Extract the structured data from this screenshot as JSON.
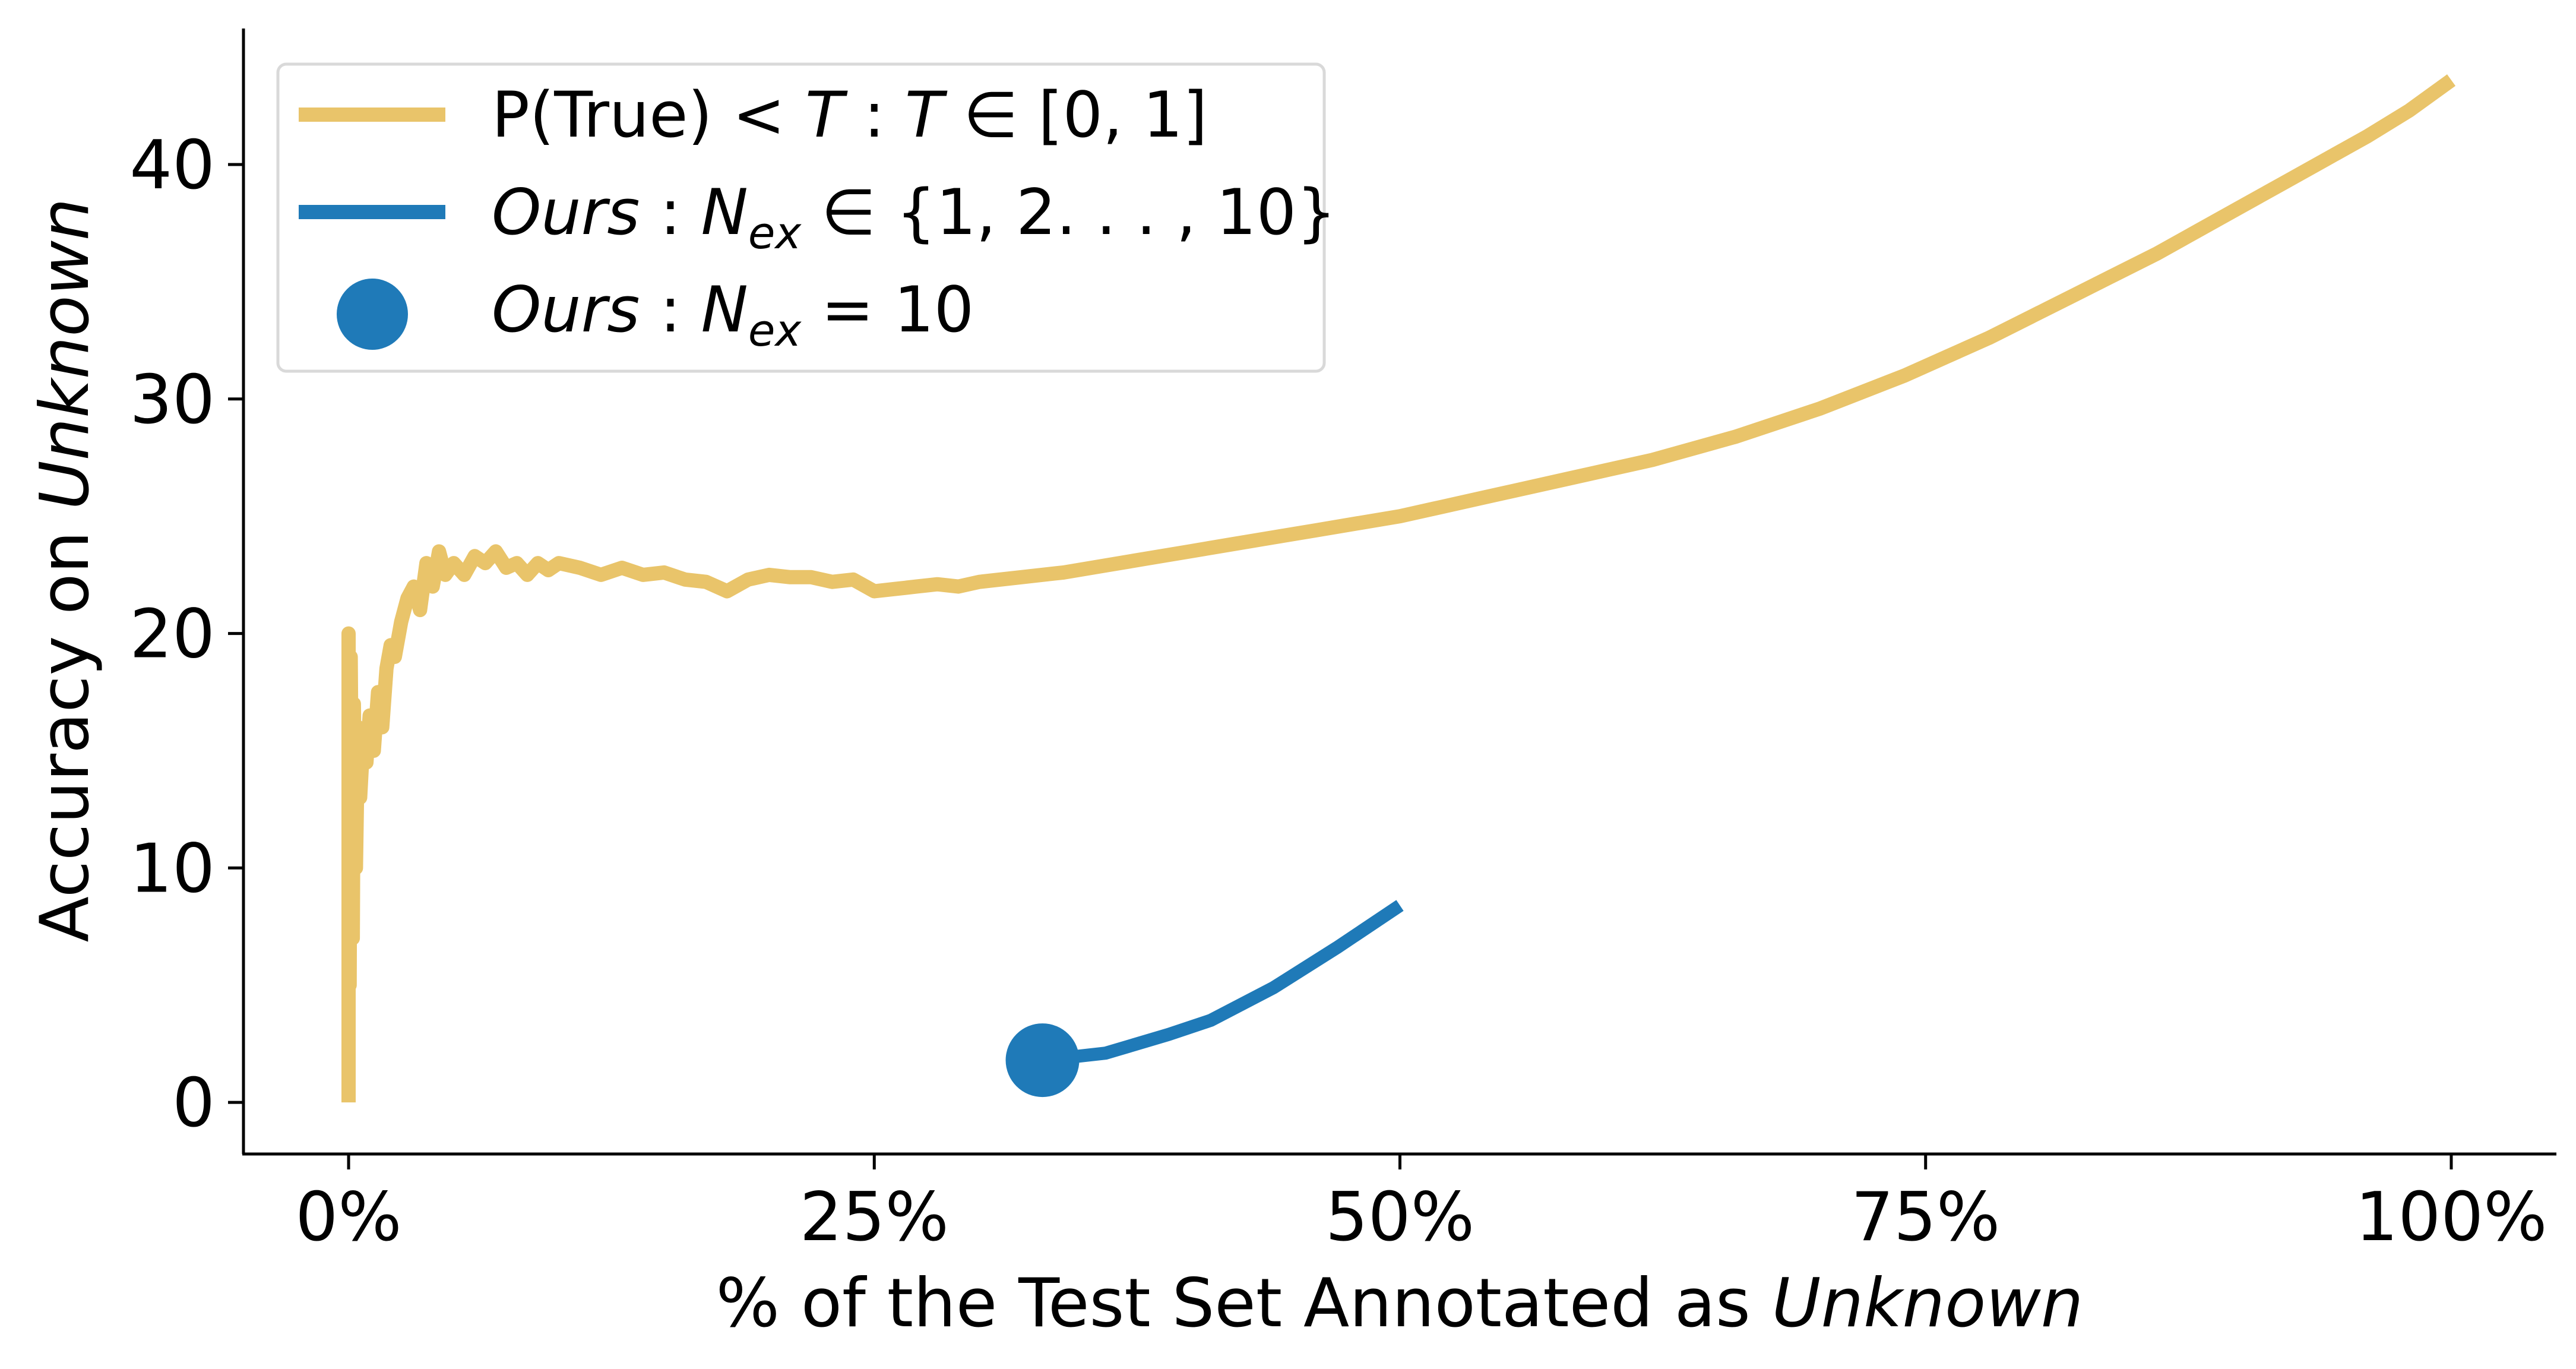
{
  "chart_data": {
    "type": "line",
    "xlabel_prefix": "% of the Test Set Annotated as ",
    "xlabel_italic": "Unknown",
    "ylabel_prefix": "Accuracy on ",
    "ylabel_italic": "Unknown",
    "xlim": [
      -5,
      105
    ],
    "ylim": [
      -2.2,
      45.8
    ],
    "x_ticks": [
      0,
      25,
      50,
      75,
      100
    ],
    "x_tick_labels": [
      "0%",
      "25%",
      "50%",
      "75%",
      "100%"
    ],
    "y_ticks": [
      0,
      10,
      20,
      30,
      40
    ],
    "y_tick_labels": [
      "0",
      "10",
      "20",
      "30",
      "40"
    ],
    "grid": false,
    "legend_position": "top-left",
    "colors": {
      "ptrue": "#E9C46A",
      "ours": "#1F7AB8"
    },
    "series": [
      {
        "name": "P(True) < T : T ∈ [0, 1]",
        "kind": "line",
        "x": [
          0,
          0,
          0.05,
          0.1,
          0.2,
          0.25,
          0.35,
          0.45,
          0.55,
          0.7,
          0.85,
          1.0,
          1.2,
          1.4,
          1.6,
          1.8,
          2.0,
          2.2,
          2.5,
          2.8,
          3.1,
          3.4,
          3.7,
          4.0,
          4.3,
          4.6,
          5.0,
          5.5,
          6.0,
          6.5,
          7.0,
          7.5,
          8.0,
          8.5,
          9.0,
          9.5,
          10,
          11,
          12,
          13,
          14,
          15,
          16,
          17,
          18,
          19,
          20,
          21,
          22,
          23,
          24,
          25,
          26,
          27,
          28,
          29,
          30,
          32,
          34,
          36,
          38,
          40,
          42,
          44,
          46,
          48,
          50,
          52,
          54,
          56,
          58,
          60,
          62,
          64,
          66,
          68,
          70,
          72,
          74,
          76,
          78,
          80,
          82,
          84,
          86,
          88,
          90,
          92,
          94,
          96,
          98,
          100
        ],
        "values": [
          0,
          20,
          5,
          19,
          7,
          17,
          10,
          16,
          13,
          15.5,
          14.5,
          16.5,
          15.0,
          17.5,
          16.0,
          18.5,
          19.5,
          19.0,
          20.5,
          21.5,
          22.0,
          21.0,
          23.0,
          22.0,
          23.5,
          22.5,
          23.0,
          22.5,
          23.3,
          23.0,
          23.5,
          22.8,
          23.0,
          22.5,
          23.0,
          22.7,
          23.0,
          22.8,
          22.5,
          22.8,
          22.5,
          22.6,
          22.3,
          22.2,
          21.8,
          22.3,
          22.5,
          22.4,
          22.4,
          22.2,
          22.3,
          21.8,
          21.9,
          22.0,
          22.1,
          22.0,
          22.2,
          22.4,
          22.6,
          22.9,
          23.2,
          23.5,
          23.8,
          24.1,
          24.4,
          24.7,
          25.0,
          25.4,
          25.8,
          26.2,
          26.6,
          27.0,
          27.4,
          27.9,
          28.4,
          29.0,
          29.6,
          30.3,
          31.0,
          31.8,
          32.6,
          33.5,
          34.4,
          35.3,
          36.2,
          37.2,
          38.2,
          39.2,
          40.2,
          41.2,
          42.3,
          43.6
        ]
      },
      {
        "name": "Ours : N_ex ∈ {1, 2..., 10}",
        "kind": "line",
        "x": [
          33,
          36,
          39,
          41,
          44,
          47,
          50
        ],
        "values": [
          1.8,
          2.1,
          2.9,
          3.5,
          4.9,
          6.6,
          8.4
        ]
      },
      {
        "name": "Ours : N_ex = 10",
        "kind": "point",
        "x": [
          33
        ],
        "values": [
          1.8
        ]
      }
    ]
  },
  "legend": [
    {
      "prefix": "P(True) < ",
      "italic": "T",
      "mid": " : ",
      "italic2": "T",
      "suffix": " ∈ [0, 1]"
    },
    {
      "italic": "Ours",
      "mid": " : ",
      "italic2": "N",
      "sub": "ex",
      "suffix": " ∈ {1, 2. . . , 10}"
    },
    {
      "italic": "Ours",
      "mid": " : ",
      "italic2": "N",
      "sub": "ex",
      "suffix": " = 10"
    }
  ]
}
